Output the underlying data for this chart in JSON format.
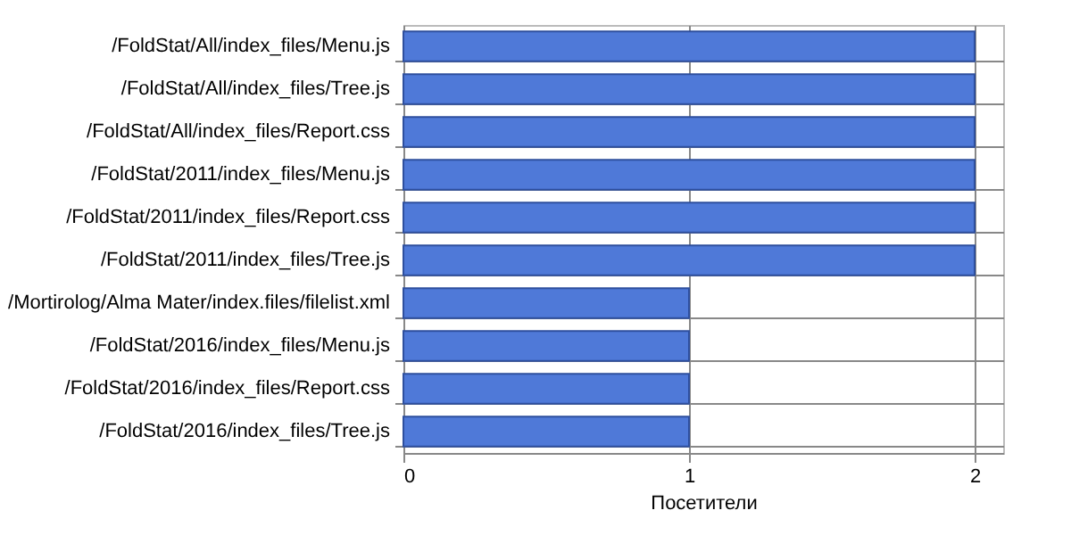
{
  "chart_data": {
    "type": "bar",
    "orientation": "horizontal",
    "xlabel": "Посетители",
    "categories": [
      "/FoldStat/All/index_files/Menu.js",
      "/FoldStat/All/index_files/Tree.js",
      "/FoldStat/All/index_files/Report.css",
      "/FoldStat/2011/index_files/Menu.js",
      "/FoldStat/2011/index_files/Report.css",
      "/FoldStat/2011/index_files/Tree.js",
      "/Mortirolog/Alma Mater/index.files/filelist.xml",
      "/FoldStat/2016/index_files/Menu.js",
      "/FoldStat/2016/index_files/Report.css",
      "/FoldStat/2016/index_files/Tree.js"
    ],
    "values": [
      2,
      2,
      2,
      2,
      2,
      2,
      1,
      1,
      1,
      1
    ],
    "color": "#4f79d8",
    "xlim": [
      0,
      2.1
    ],
    "xticks": [
      0,
      1,
      2
    ],
    "grid": true
  }
}
